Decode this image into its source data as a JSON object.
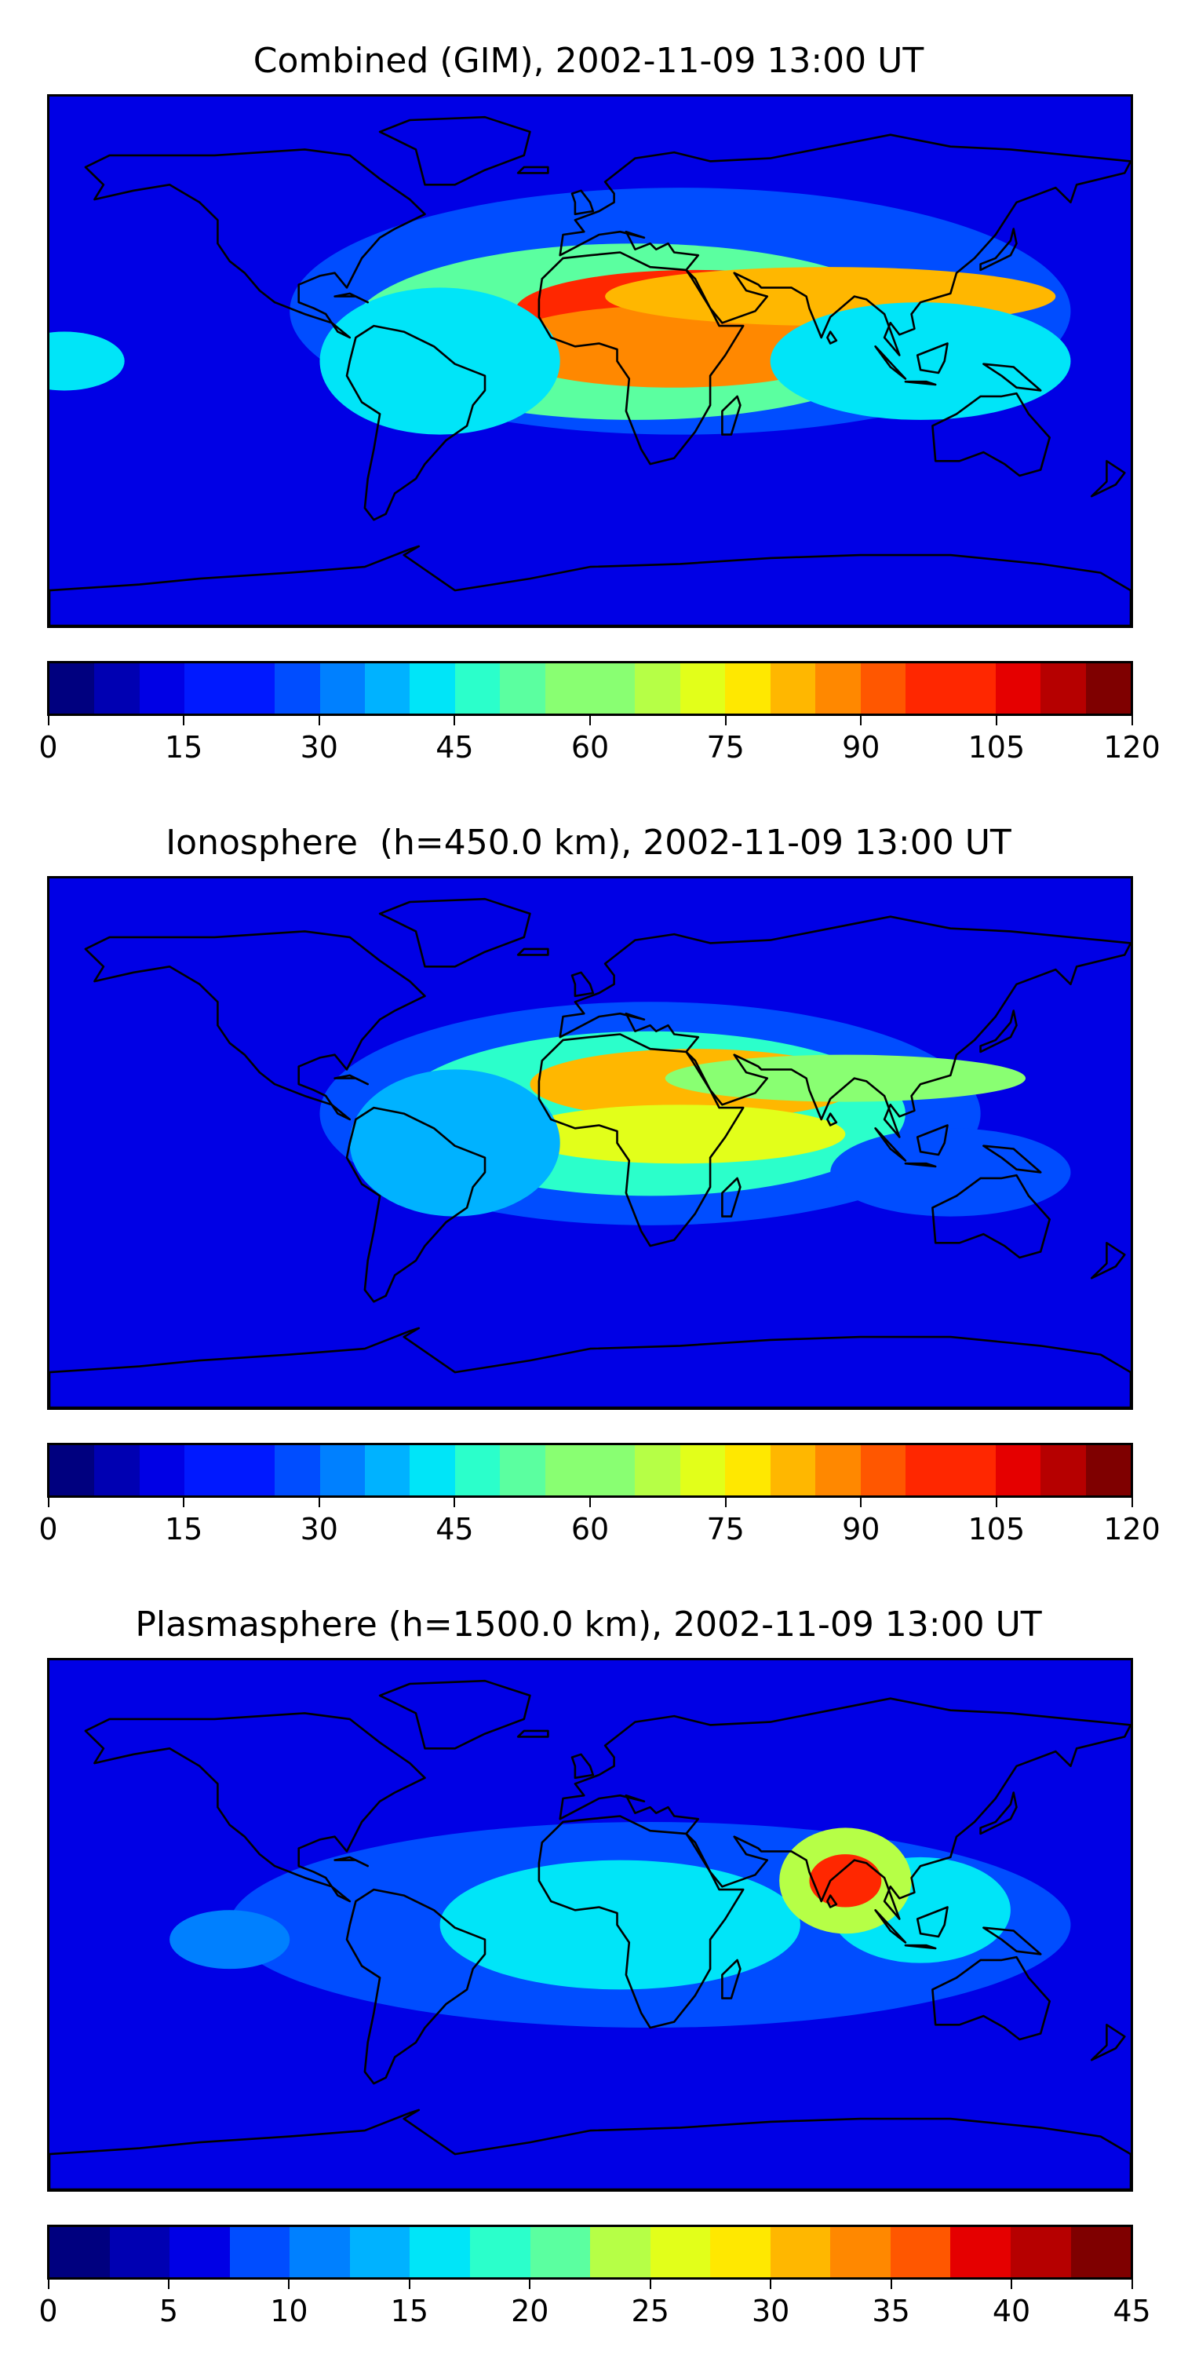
{
  "colors": {
    "jet_levels": [
      "#00007f",
      "#0000b2",
      "#0000e5",
      "#0019ff",
      "#004dff",
      "#0080ff",
      "#00b2ff",
      "#00e5f8",
      "#2bffcb",
      "#5bffa0",
      "#89ff72",
      "#b6ff46",
      "#e2ff1a",
      "#ffe800",
      "#ffb700",
      "#ff8800",
      "#ff5700",
      "#ff2700",
      "#e50000",
      "#b60000",
      "#7f0000"
    ],
    "land_outline": "#000000",
    "background": "#0a1cf0"
  },
  "panels": [
    {
      "title": "Combined (GIM), 2002-11-09 13:00 UT",
      "scale_min": 0,
      "scale_max": 120,
      "colorbar_ticks": [
        "0",
        "15",
        "30",
        "45",
        "60",
        "75",
        "90",
        "105",
        "120"
      ],
      "colorbar_levels": 24,
      "blobs": [
        {
          "lon": 30,
          "lat": 17,
          "rx": 130,
          "ry": 42,
          "value": 25
        },
        {
          "lon": 15,
          "lat": 10,
          "rx": 95,
          "ry": 30,
          "value": 55
        },
        {
          "lon": 35,
          "lat": 17,
          "rx": 60,
          "ry": 14,
          "value": 100
        },
        {
          "lon": 28,
          "lat": 5,
          "rx": 60,
          "ry": 14,
          "value": 90
        },
        {
          "lon": 80,
          "lat": 22,
          "rx": 75,
          "ry": 10,
          "value": 80
        },
        {
          "lon": -50,
          "lat": 0,
          "rx": 40,
          "ry": 25,
          "value": 40
        },
        {
          "lon": 110,
          "lat": 0,
          "rx": 50,
          "ry": 20,
          "value": 40
        },
        {
          "lon": -175,
          "lat": 0,
          "rx": 20,
          "ry": 10,
          "value": 40
        }
      ]
    },
    {
      "title": "Ionosphere  (h=450.0 km), 2002-11-09 13:00 UT",
      "scale_min": 0,
      "scale_max": 120,
      "colorbar_ticks": [
        "0",
        "15",
        "30",
        "45",
        "60",
        "75",
        "90",
        "105",
        "120"
      ],
      "colorbar_levels": 24,
      "blobs": [
        {
          "lon": 20,
          "lat": 10,
          "rx": 110,
          "ry": 38,
          "value": 25
        },
        {
          "lon": 20,
          "lat": 10,
          "rx": 85,
          "ry": 28,
          "value": 50
        },
        {
          "lon": 35,
          "lat": 20,
          "rx": 55,
          "ry": 12,
          "value": 85
        },
        {
          "lon": 30,
          "lat": 3,
          "rx": 55,
          "ry": 10,
          "value": 72
        },
        {
          "lon": 85,
          "lat": 22,
          "rx": 60,
          "ry": 8,
          "value": 60
        },
        {
          "lon": -45,
          "lat": 0,
          "rx": 35,
          "ry": 25,
          "value": 35
        },
        {
          "lon": 120,
          "lat": -10,
          "rx": 40,
          "ry": 15,
          "value": 25
        }
      ]
    },
    {
      "title": "Plasmasphere (h=1500.0 km), 2002-11-09 13:00 UT",
      "scale_min": 0,
      "scale_max": 45,
      "colorbar_ticks": [
        "0",
        "5",
        "10",
        "15",
        "20",
        "25",
        "30",
        "35",
        "40",
        "45"
      ],
      "colorbar_levels": 18,
      "blobs": [
        {
          "lon": 20,
          "lat": 0,
          "rx": 140,
          "ry": 35,
          "value": 9
        },
        {
          "lon": 10,
          "lat": 0,
          "rx": 60,
          "ry": 22,
          "value": 15
        },
        {
          "lon": 110,
          "lat": 5,
          "rx": 30,
          "ry": 18,
          "value": 17
        },
        {
          "lon": 85,
          "lat": 15,
          "rx": 22,
          "ry": 18,
          "value": 25
        },
        {
          "lon": 85,
          "lat": 15,
          "rx": 12,
          "ry": 9,
          "value": 37
        },
        {
          "lon": -120,
          "lat": -5,
          "rx": 20,
          "ry": 10,
          "value": 12
        }
      ]
    }
  ]
}
